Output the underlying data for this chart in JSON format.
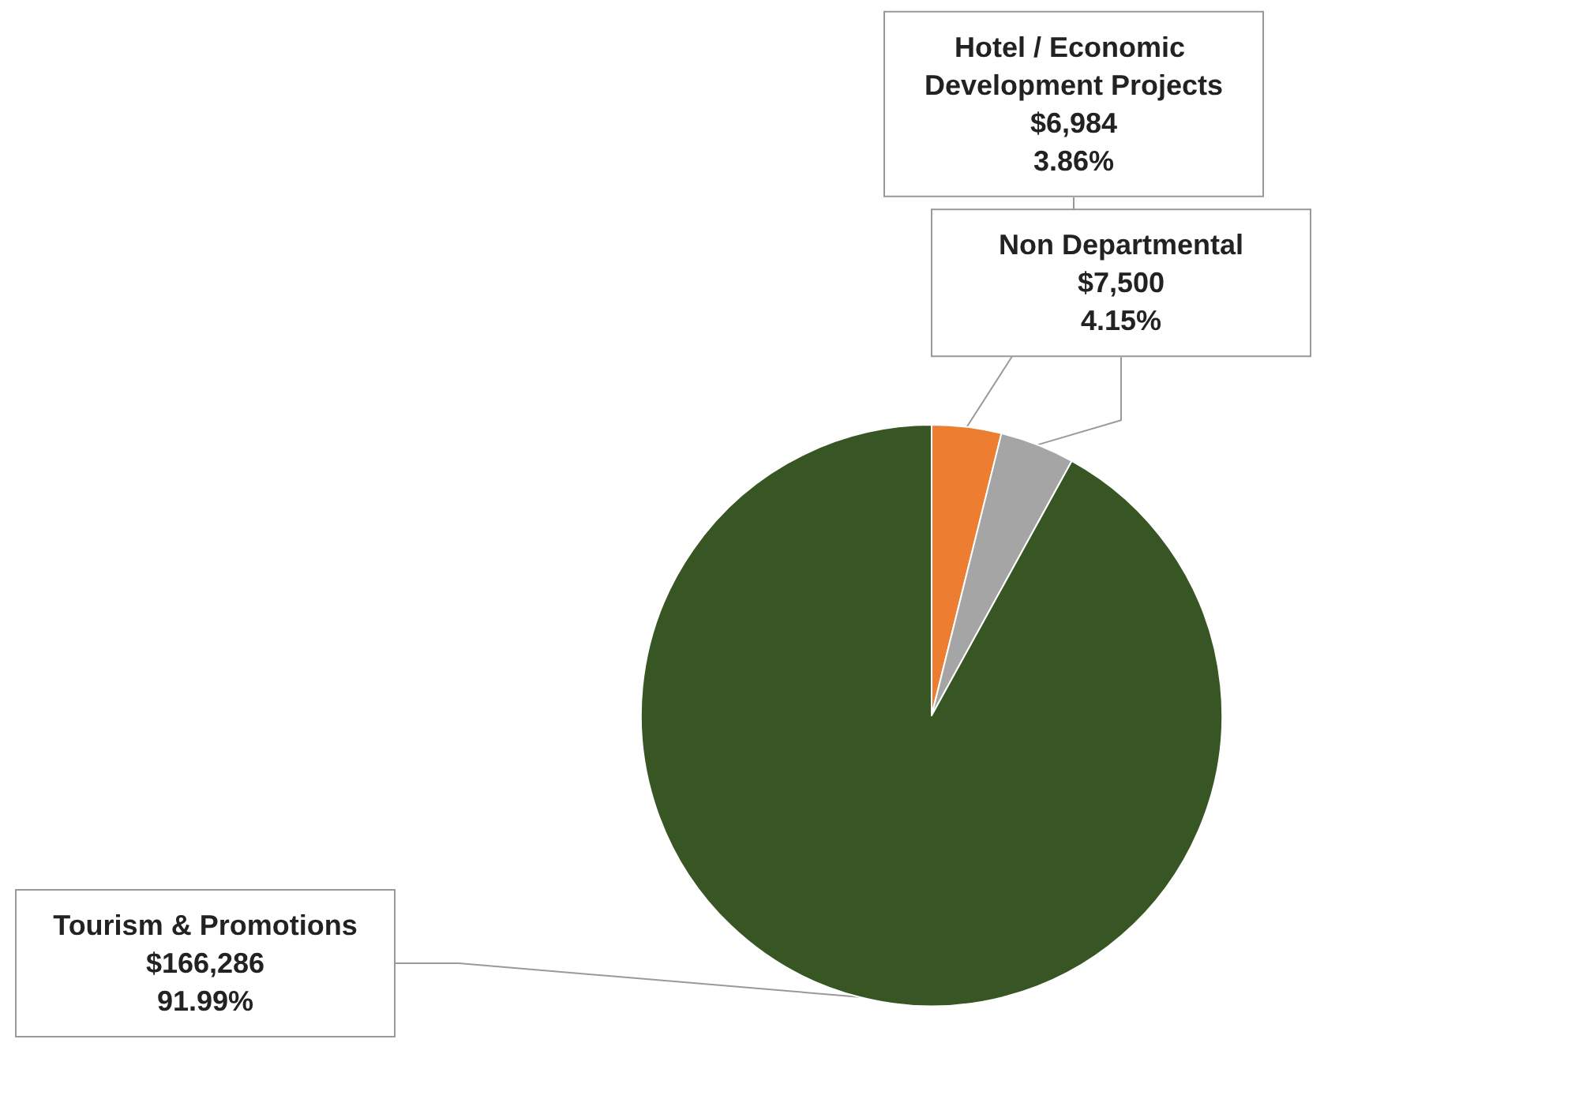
{
  "chart_data": {
    "type": "pie",
    "categories": [
      "Hotel / Economic Development Projects",
      "Non Departmental",
      "Tourism & Promotions"
    ],
    "values": [
      6984,
      7500,
      166286
    ],
    "colors": [
      "#ed7d31",
      "#a5a5a5",
      "#375623"
    ],
    "value_labels": [
      "$6,984\n3.86%",
      "$7,500\n4.15%",
      "$166,286\n91.99%"
    ]
  }
}
